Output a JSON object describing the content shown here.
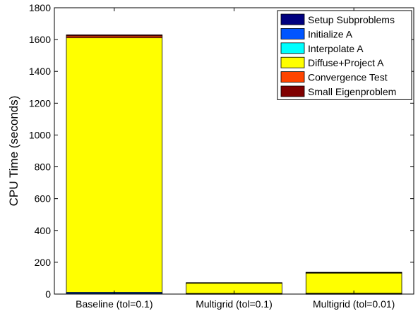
{
  "chart_data": {
    "type": "bar",
    "stacked": true,
    "title": "",
    "xlabel": "",
    "ylabel": "CPU Time (seconds)",
    "ylim": [
      0,
      1800
    ],
    "yticks": [
      0,
      200,
      400,
      600,
      800,
      1000,
      1200,
      1400,
      1600,
      1800
    ],
    "categories": [
      "Baseline (tol=0.1)",
      "Multigrid (tol=0.1)",
      "Multigrid (tol=0.01)"
    ],
    "series": [
      {
        "name": "Setup Subproblems",
        "color": "#00007f",
        "values": [
          3,
          1,
          1
        ]
      },
      {
        "name": "Initialize A",
        "color": "#0055ff",
        "values": [
          8,
          1,
          1
        ]
      },
      {
        "name": "Interpolate A",
        "color": "#00ffff",
        "values": [
          0,
          2,
          3
        ]
      },
      {
        "name": "Diffuse+Project A",
        "color": "#ffff00",
        "values": [
          1600,
          65,
          127
        ]
      },
      {
        "name": "Convergence Test",
        "color": "#ff4400",
        "values": [
          12,
          1,
          2
        ]
      },
      {
        "name": "Small Eigenproblem",
        "color": "#800000",
        "values": [
          7,
          2,
          3
        ]
      }
    ],
    "grid": false,
    "legend_position": "top-right"
  }
}
